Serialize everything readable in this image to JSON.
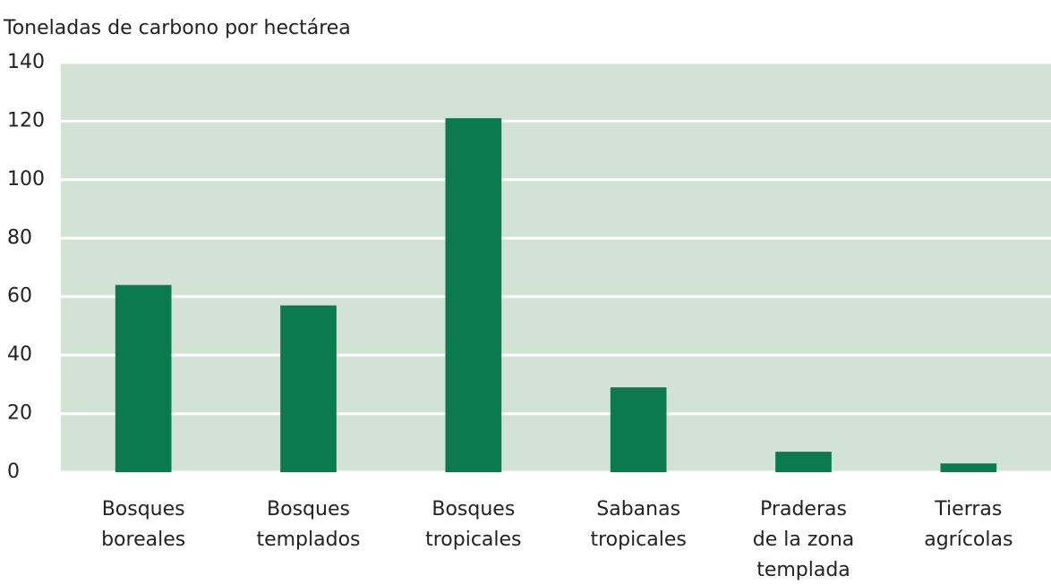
{
  "chart_data": {
    "type": "bar",
    "title": "Toneladas de carbono por hectárea",
    "categories": [
      [
        "Bosques",
        "boreales"
      ],
      [
        "Bosques",
        "templados"
      ],
      [
        "Bosques",
        "tropicales"
      ],
      [
        "Sabanas",
        "tropicales"
      ],
      [
        "Praderas",
        "de la zona",
        "templada"
      ],
      [
        "Tierras",
        "agrícolas"
      ]
    ],
    "values": [
      64,
      57,
      121,
      29,
      7,
      3
    ],
    "color": "#0b7a4f",
    "background": "#d2e3d6",
    "ylim": [
      0,
      140
    ],
    "yticks": [
      0,
      20,
      40,
      60,
      80,
      100,
      120,
      140
    ],
    "grid": true
  }
}
